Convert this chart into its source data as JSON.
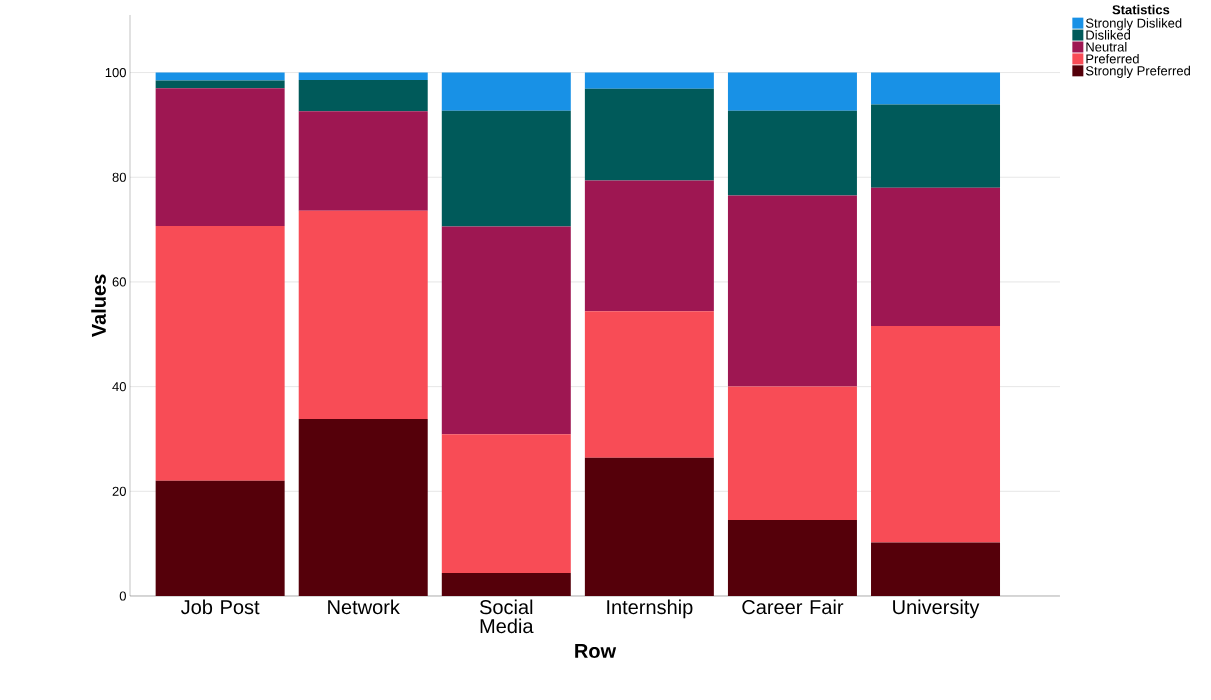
{
  "chart_data": {
    "type": "bar",
    "stacked": true,
    "xlabel": "Row",
    "ylabel": "Values",
    "legend_title": "Statistics",
    "categories": [
      "Job Post",
      "Network",
      "Social Media",
      "Internship",
      "Career Fair",
      "University"
    ],
    "series": [
      {
        "name": "Strongly Preferred",
        "color": "#55000a",
        "values": [
          22.0,
          33.8,
          4.4,
          26.4,
          14.5,
          10.2
        ]
      },
      {
        "name": "Preferred",
        "color": "#f84c56",
        "values": [
          48.7,
          39.8,
          26.5,
          28.0,
          25.5,
          41.4
        ]
      },
      {
        "name": "Neutral",
        "color": "#9e1752",
        "values": [
          26.3,
          19.0,
          39.7,
          25.0,
          36.5,
          26.4
        ]
      },
      {
        "name": "Disliked",
        "color": "#005a5a",
        "values": [
          1.5,
          6.0,
          22.1,
          17.5,
          16.2,
          15.9
        ]
      },
      {
        "name": "Strongly Disliked",
        "color": "#1891e6",
        "values": [
          1.5,
          1.4,
          7.3,
          3.1,
          7.3,
          6.1
        ]
      }
    ],
    "ylim": [
      0,
      111
    ],
    "yticks": [
      0,
      20,
      40,
      60,
      80,
      100
    ],
    "grid": "y",
    "legend": "top right"
  }
}
